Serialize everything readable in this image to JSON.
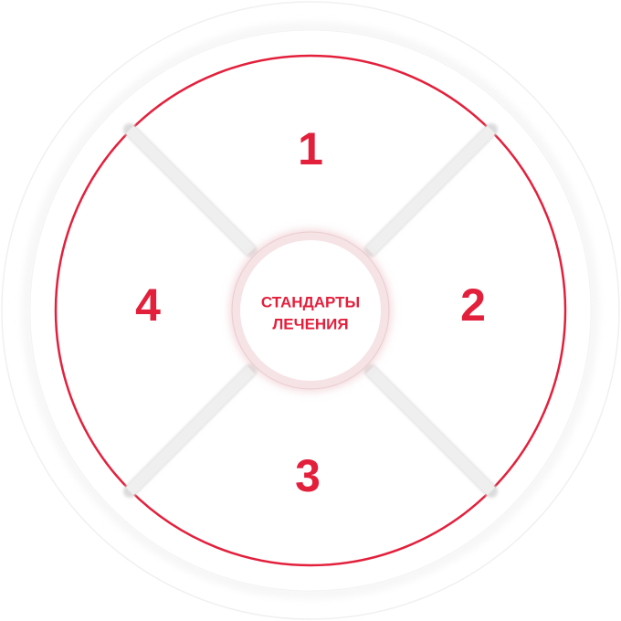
{
  "diagram": {
    "center": {
      "line1": "СТАНДАРТЫ",
      "line2": "ЛЕЧЕНИЯ"
    },
    "segments": [
      {
        "position": "top",
        "label": "1"
      },
      {
        "position": "right",
        "label": "2"
      },
      {
        "position": "bottom",
        "label": "3"
      },
      {
        "position": "left",
        "label": "4"
      }
    ]
  },
  "colors": {
    "accent": "#e3203c",
    "divider": "#eeeeee",
    "outer_ring": "#f0f0f0",
    "center_glow": "#f1d4d8",
    "background": "#ffffff"
  }
}
